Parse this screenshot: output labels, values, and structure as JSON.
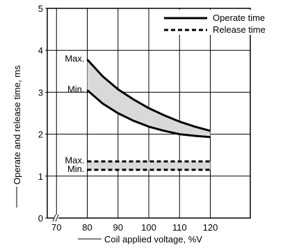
{
  "chart_data": {
    "type": "line",
    "xlabel": "Coil applied voltage, %V",
    "ylabel": "Operate and release time, ms",
    "x_ticks": [
      70,
      80,
      90,
      100,
      110,
      120
    ],
    "x_zero_label": "0",
    "y_ticks": [
      0,
      1,
      2,
      3,
      4,
      5
    ],
    "xlim": [
      67,
      133
    ],
    "ylim": [
      0,
      5
    ],
    "axis_break": "between 0 and 70 on x axis",
    "grid": true,
    "legend_position": "top-right",
    "legend": [
      {
        "label": "Operate time",
        "style": "solid"
      },
      {
        "label": "Release time",
        "style": "dashed"
      }
    ],
    "series": [
      {
        "name": "Operate time",
        "style": "solid",
        "band": true,
        "band_fill": "#d9d9d9",
        "upper": {
          "label": "Max.",
          "x": [
            80,
            85,
            90,
            95,
            100,
            105,
            110,
            115,
            120
          ],
          "y": [
            3.78,
            3.38,
            3.07,
            2.83,
            2.62,
            2.45,
            2.3,
            2.18,
            2.08
          ]
        },
        "lower": {
          "label": "Min.",
          "x": [
            80,
            85,
            90,
            95,
            100,
            105,
            110,
            115,
            120
          ],
          "y": [
            3.05,
            2.73,
            2.5,
            2.32,
            2.18,
            2.08,
            2.0,
            1.96,
            1.93
          ]
        }
      },
      {
        "name": "Release time",
        "style": "dashed",
        "band": true,
        "band_fill": "#d9d9d9",
        "upper": {
          "label": "Max.",
          "x": [
            80,
            120
          ],
          "y": [
            1.35,
            1.35
          ]
        },
        "lower": {
          "label": "Min.",
          "x": [
            80,
            120
          ],
          "y": [
            1.15,
            1.15
          ]
        }
      }
    ]
  }
}
